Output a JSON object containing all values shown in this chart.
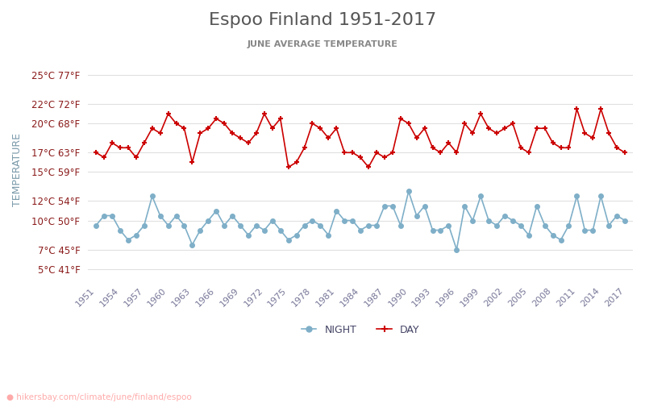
{
  "title": "Espoo Finland 1951-2017",
  "subtitle": "JUNE AVERAGE TEMPERATURE",
  "ylabel": "TEMPERATURE",
  "watermark": "hikersbay.com/climate/june/finland/espoo",
  "years": [
    1951,
    1952,
    1953,
    1954,
    1955,
    1956,
    1957,
    1958,
    1959,
    1960,
    1961,
    1962,
    1963,
    1964,
    1965,
    1966,
    1967,
    1968,
    1969,
    1970,
    1971,
    1972,
    1973,
    1974,
    1975,
    1976,
    1977,
    1978,
    1979,
    1980,
    1981,
    1982,
    1983,
    1984,
    1985,
    1986,
    1987,
    1988,
    1989,
    1990,
    1991,
    1992,
    1993,
    1994,
    1995,
    1996,
    1997,
    1998,
    1999,
    2000,
    2001,
    2002,
    2003,
    2004,
    2005,
    2006,
    2007,
    2008,
    2009,
    2010,
    2011,
    2012,
    2013,
    2014,
    2015,
    2016,
    2017
  ],
  "day": [
    17.0,
    16.5,
    18.0,
    17.5,
    17.5,
    16.5,
    18.0,
    19.5,
    19.0,
    21.0,
    20.0,
    19.5,
    16.0,
    19.0,
    19.5,
    20.5,
    20.0,
    19.0,
    18.5,
    18.0,
    19.0,
    21.0,
    19.5,
    20.5,
    15.5,
    16.0,
    17.5,
    20.0,
    19.5,
    18.5,
    19.5,
    17.0,
    17.0,
    16.5,
    15.5,
    17.0,
    16.5,
    17.0,
    20.5,
    20.0,
    18.5,
    19.5,
    17.5,
    17.0,
    18.0,
    17.0,
    20.0,
    19.0,
    21.0,
    19.5,
    19.0,
    19.5,
    20.0,
    17.5,
    17.0,
    19.5,
    19.5,
    18.0,
    17.5,
    17.5,
    21.5,
    19.0,
    18.5,
    21.5,
    19.0,
    17.5,
    17.0
  ],
  "night": [
    9.5,
    10.5,
    10.5,
    9.0,
    8.0,
    8.5,
    9.5,
    12.5,
    10.5,
    9.5,
    10.5,
    9.5,
    7.5,
    9.0,
    10.0,
    11.0,
    9.5,
    10.5,
    9.5,
    8.5,
    9.5,
    9.0,
    10.0,
    9.0,
    8.0,
    8.5,
    9.5,
    10.0,
    9.5,
    8.5,
    11.0,
    10.0,
    10.0,
    9.0,
    9.5,
    9.5,
    11.5,
    11.5,
    9.5,
    13.0,
    10.5,
    11.5,
    9.0,
    9.0,
    9.5,
    7.0,
    11.5,
    10.0,
    12.5,
    10.0,
    9.5,
    10.5,
    10.0,
    9.5,
    8.5,
    11.5,
    9.5,
    8.5,
    8.0,
    9.5,
    12.5,
    9.0,
    9.0,
    12.5,
    9.5,
    10.5,
    10.0
  ],
  "yticks_c": [
    5,
    7,
    10,
    12,
    15,
    17,
    20,
    22,
    25
  ],
  "yticks_f": [
    41,
    45,
    50,
    54,
    59,
    63,
    68,
    72,
    77
  ],
  "day_color": "#cc0000",
  "night_color": "#7fafc8",
  "title_color": "#555555",
  "subtitle_color": "#888888",
  "label_color": "#8b1a1a",
  "axis_label_color": "#7a9aaa",
  "grid_color": "#e0e0e0",
  "bg_color": "#ffffff",
  "watermark_color": "#ffaaaa",
  "watermark_icon_color": "#ff6600",
  "xtick_years": [
    1951,
    1954,
    1957,
    1960,
    1963,
    1966,
    1969,
    1972,
    1975,
    1978,
    1981,
    1984,
    1987,
    1990,
    1993,
    1996,
    1999,
    2002,
    2005,
    2008,
    2011,
    2014,
    2017
  ],
  "xtick_color": "#777799",
  "legend_label_color": "#444466"
}
